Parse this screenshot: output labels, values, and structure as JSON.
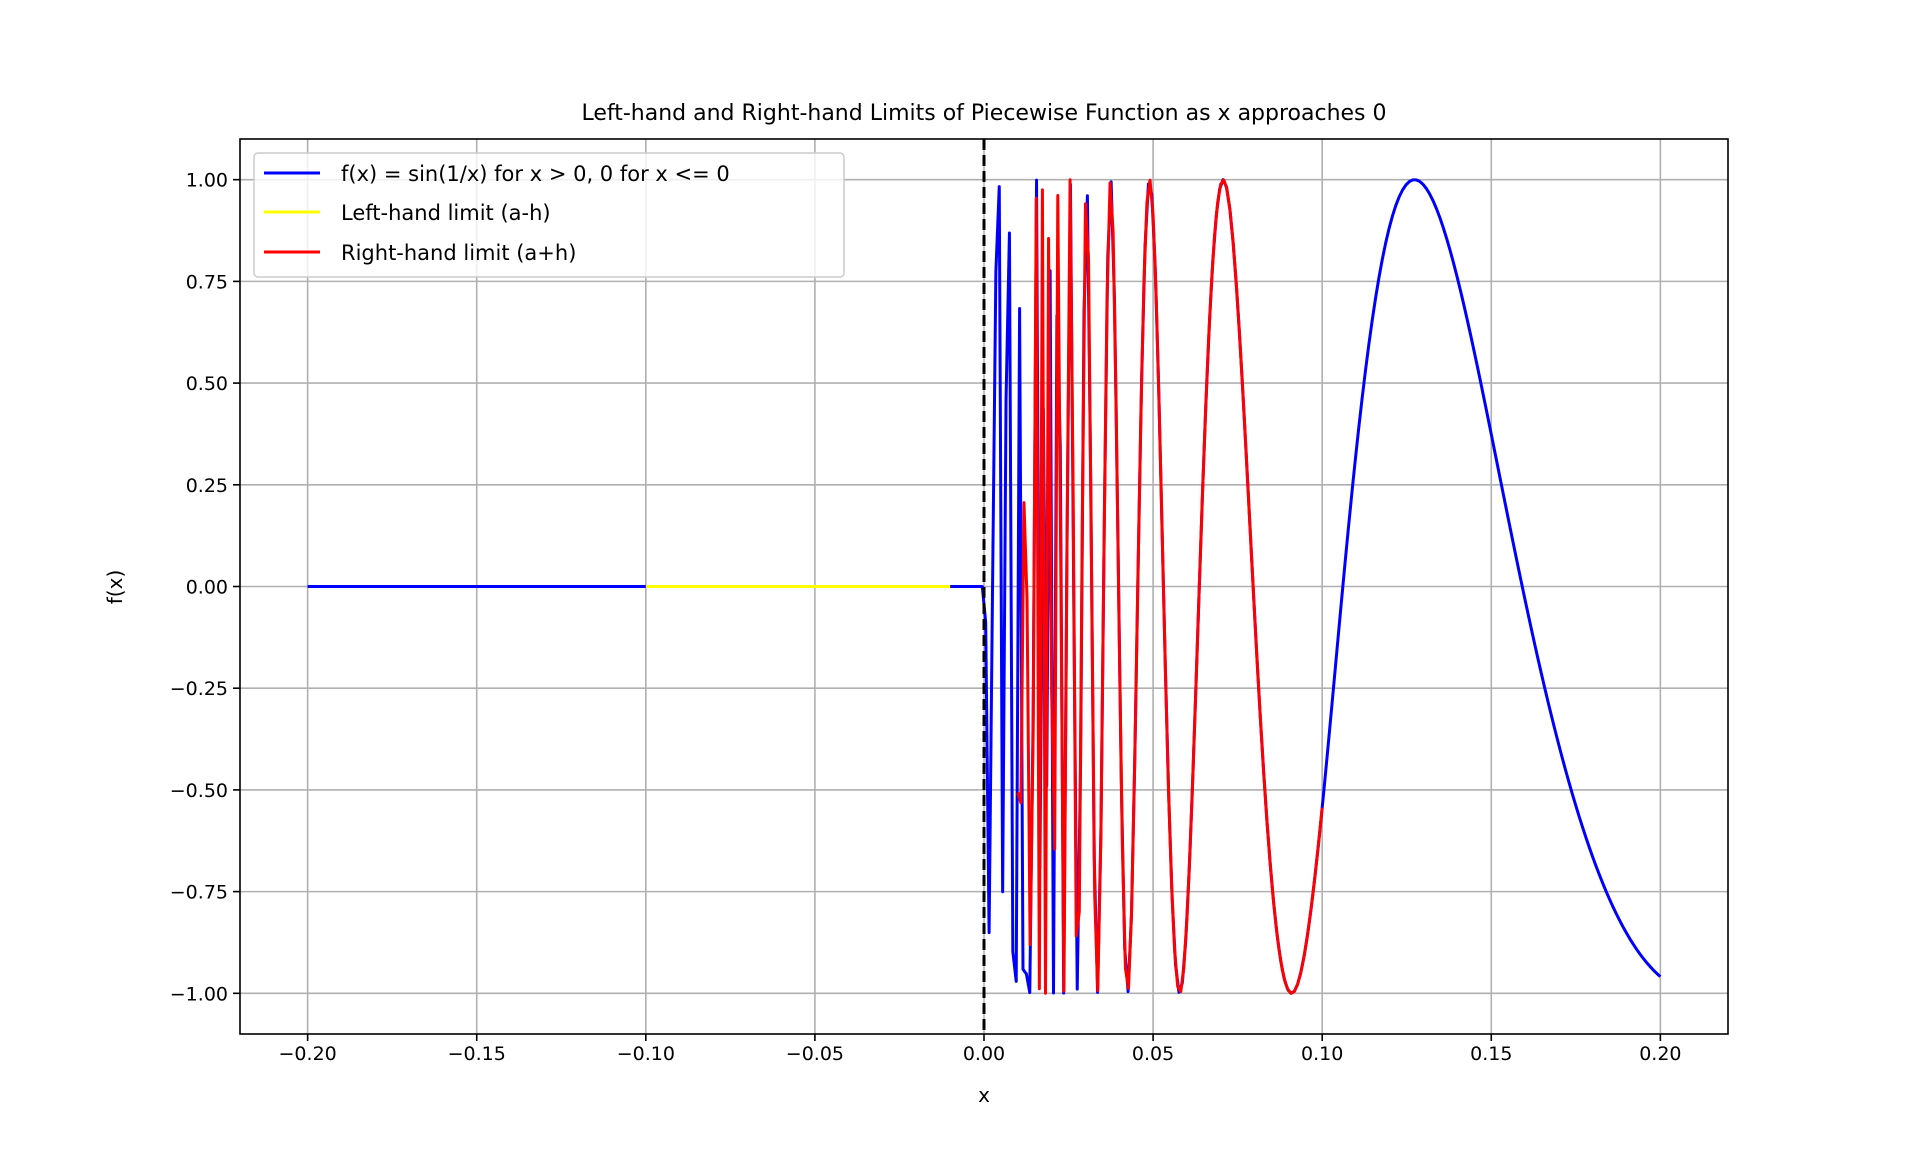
{
  "chart_data": {
    "type": "line",
    "title": "Left-hand and Right-hand Limits of Piecewise Function as x approaches 0",
    "xlabel": "x",
    "ylabel": "f(x)",
    "xlim": [
      -0.22,
      0.22
    ],
    "ylim": [
      -1.1,
      1.1
    ],
    "xticks": [
      -0.2,
      -0.15,
      -0.1,
      -0.05,
      0.0,
      0.05,
      0.1,
      0.15,
      0.2
    ],
    "xtick_labels": [
      "−0.20",
      "−0.15",
      "−0.10",
      "−0.05",
      "0.00",
      "0.05",
      "0.10",
      "0.15",
      "0.20"
    ],
    "yticks": [
      1.0,
      0.75,
      0.5,
      0.25,
      0.0,
      -0.25,
      -0.5,
      -0.75,
      -1.0
    ],
    "ytick_labels": [
      "1.00",
      "0.75",
      "0.50",
      "0.25",
      "0.00",
      "−0.25",
      "−0.50",
      "−0.75",
      "−1.00"
    ],
    "grid": true,
    "legend_position": "top-left",
    "vline": {
      "x": 0,
      "style": "dashed",
      "color": "#000000"
    },
    "series": [
      {
        "name": "f(x) = sin(1/x) for x > 0, 0 for x <= 0",
        "color": "#0000ff",
        "function": "sin(1/x) for x > 0, 0 for x <= 0",
        "x_range": [
          -0.2,
          0.2
        ],
        "samples": 400
      },
      {
        "name": "Left-hand limit (a-h)",
        "color": "#ffff00",
        "function": "0",
        "x_range": [
          -0.1,
          -0.01
        ],
        "samples": 100
      },
      {
        "name": "Right-hand limit (a+h)",
        "color": "#ff0000",
        "function": "sin(1/x)",
        "x_range": [
          0.01,
          0.1
        ],
        "samples": 100
      }
    ]
  }
}
